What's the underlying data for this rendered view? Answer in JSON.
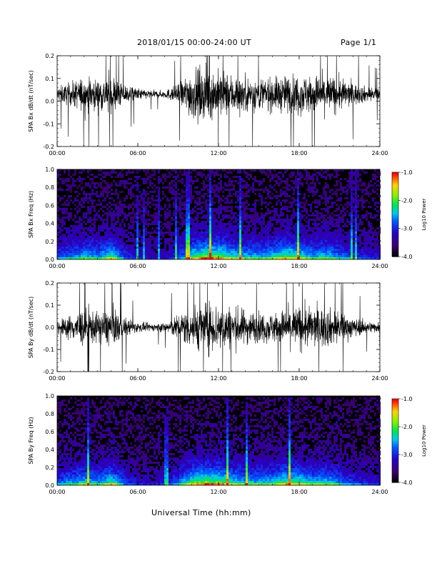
{
  "header": {
    "title": "2018/01/15  00:00-24:00 UT",
    "page": "Page 1/1"
  },
  "footer": {
    "xlabel": "Universal Time (hh:mm)"
  },
  "colors": {
    "trace": "#000000",
    "spectrogram_background": "#000000"
  },
  "chart_data": [
    {
      "type": "line",
      "panel": "bx-waveform",
      "ylabel": "SPA Bx dB/dt (nT/sec)",
      "xlim": [
        0,
        24
      ],
      "ylim": [
        -0.2,
        0.2
      ],
      "x_ticks": [
        "00:00",
        "06:00",
        "12:00",
        "18:00",
        "24:00"
      ],
      "y_ticks": [
        "-0.2",
        "-0.1",
        "0.0",
        "0.1",
        "0.2"
      ],
      "baseline": 0.03,
      "envelope_x": [
        0,
        1,
        2,
        3,
        4,
        5,
        6,
        7,
        8,
        9,
        10,
        11,
        12,
        13,
        14,
        15,
        16,
        17,
        18,
        19,
        20,
        21,
        22,
        23,
        24
      ],
      "envelope_amplitude": [
        0.06,
        0.09,
        0.14,
        0.12,
        0.16,
        0.08,
        0.05,
        0.03,
        0.03,
        0.08,
        0.2,
        0.2,
        0.19,
        0.16,
        0.14,
        0.13,
        0.13,
        0.15,
        0.16,
        0.15,
        0.16,
        0.13,
        0.09,
        0.06,
        0.05
      ]
    },
    {
      "type": "heatmap",
      "panel": "bx-spectrogram",
      "ylabel": "SPA Bx Freq (Hz)",
      "xlim": [
        0,
        24
      ],
      "ylim": [
        0,
        1.0
      ],
      "x_ticks": [
        "00:00",
        "06:00",
        "12:00",
        "18:00",
        "24:00"
      ],
      "y_ticks": [
        "0.0",
        "0.2",
        "0.4",
        "0.6",
        "0.8",
        "1.0"
      ],
      "colorbar": {
        "label": "Log10 Power",
        "range": [
          -4.0,
          -1.0
        ],
        "ticks": [
          "-1.0",
          "-2.0",
          "-3.0",
          "-4.0"
        ]
      },
      "activity_x": [
        0,
        1,
        2,
        3,
        4,
        5,
        6,
        7,
        8,
        9,
        10,
        11,
        12,
        13,
        14,
        15,
        16,
        17,
        18,
        19,
        20,
        21,
        22,
        23,
        24
      ],
      "activity": [
        0.35,
        0.45,
        0.55,
        0.5,
        0.7,
        0.3,
        0.2,
        0.15,
        0.15,
        0.35,
        0.7,
        0.85,
        0.8,
        0.65,
        0.55,
        0.55,
        0.6,
        0.75,
        0.65,
        0.55,
        0.6,
        0.45,
        0.3,
        0.25,
        0.2
      ]
    },
    {
      "type": "line",
      "panel": "by-waveform",
      "ylabel": "SPA By dB/dt (nT/sec)",
      "xlim": [
        0,
        24
      ],
      "ylim": [
        -0.2,
        0.2
      ],
      "x_ticks": [
        "00:00",
        "06:00",
        "12:00",
        "18:00",
        "24:00"
      ],
      "y_ticks": [
        "-0.2",
        "-0.1",
        "0.0",
        "0.1",
        "0.2"
      ],
      "baseline": 0.0,
      "envelope_x": [
        0,
        1,
        2,
        3,
        4,
        5,
        6,
        7,
        8,
        9,
        10,
        11,
        12,
        13,
        14,
        15,
        16,
        17,
        18,
        19,
        20,
        21,
        22,
        23,
        24
      ],
      "envelope_amplitude": [
        0.06,
        0.1,
        0.16,
        0.12,
        0.16,
        0.08,
        0.04,
        0.03,
        0.04,
        0.1,
        0.18,
        0.2,
        0.2,
        0.17,
        0.14,
        0.12,
        0.12,
        0.15,
        0.18,
        0.16,
        0.16,
        0.13,
        0.08,
        0.05,
        0.04
      ]
    },
    {
      "type": "heatmap",
      "panel": "by-spectrogram",
      "ylabel": "SPA By Freq (Hz)",
      "xlim": [
        0,
        24
      ],
      "ylim": [
        0,
        1.0
      ],
      "x_ticks": [
        "00:00",
        "06:00",
        "12:00",
        "18:00",
        "24:00"
      ],
      "y_ticks": [
        "0.0",
        "0.2",
        "0.4",
        "0.6",
        "0.8",
        "1.0"
      ],
      "colorbar": {
        "label": "Log10 Power",
        "range": [
          -4.0,
          -1.0
        ],
        "ticks": [
          "-1.0",
          "-2.0",
          "-3.0",
          "-4.0"
        ]
      },
      "activity_x": [
        0,
        1,
        2,
        3,
        4,
        5,
        6,
        7,
        8,
        9,
        10,
        11,
        12,
        13,
        14,
        15,
        16,
        17,
        18,
        19,
        20,
        21,
        22,
        23,
        24
      ],
      "activity": [
        0.4,
        0.5,
        0.6,
        0.5,
        0.7,
        0.3,
        0.2,
        0.15,
        0.2,
        0.45,
        0.75,
        0.85,
        0.8,
        0.65,
        0.55,
        0.55,
        0.6,
        0.75,
        0.7,
        0.55,
        0.6,
        0.45,
        0.3,
        0.25,
        0.2
      ]
    }
  ]
}
